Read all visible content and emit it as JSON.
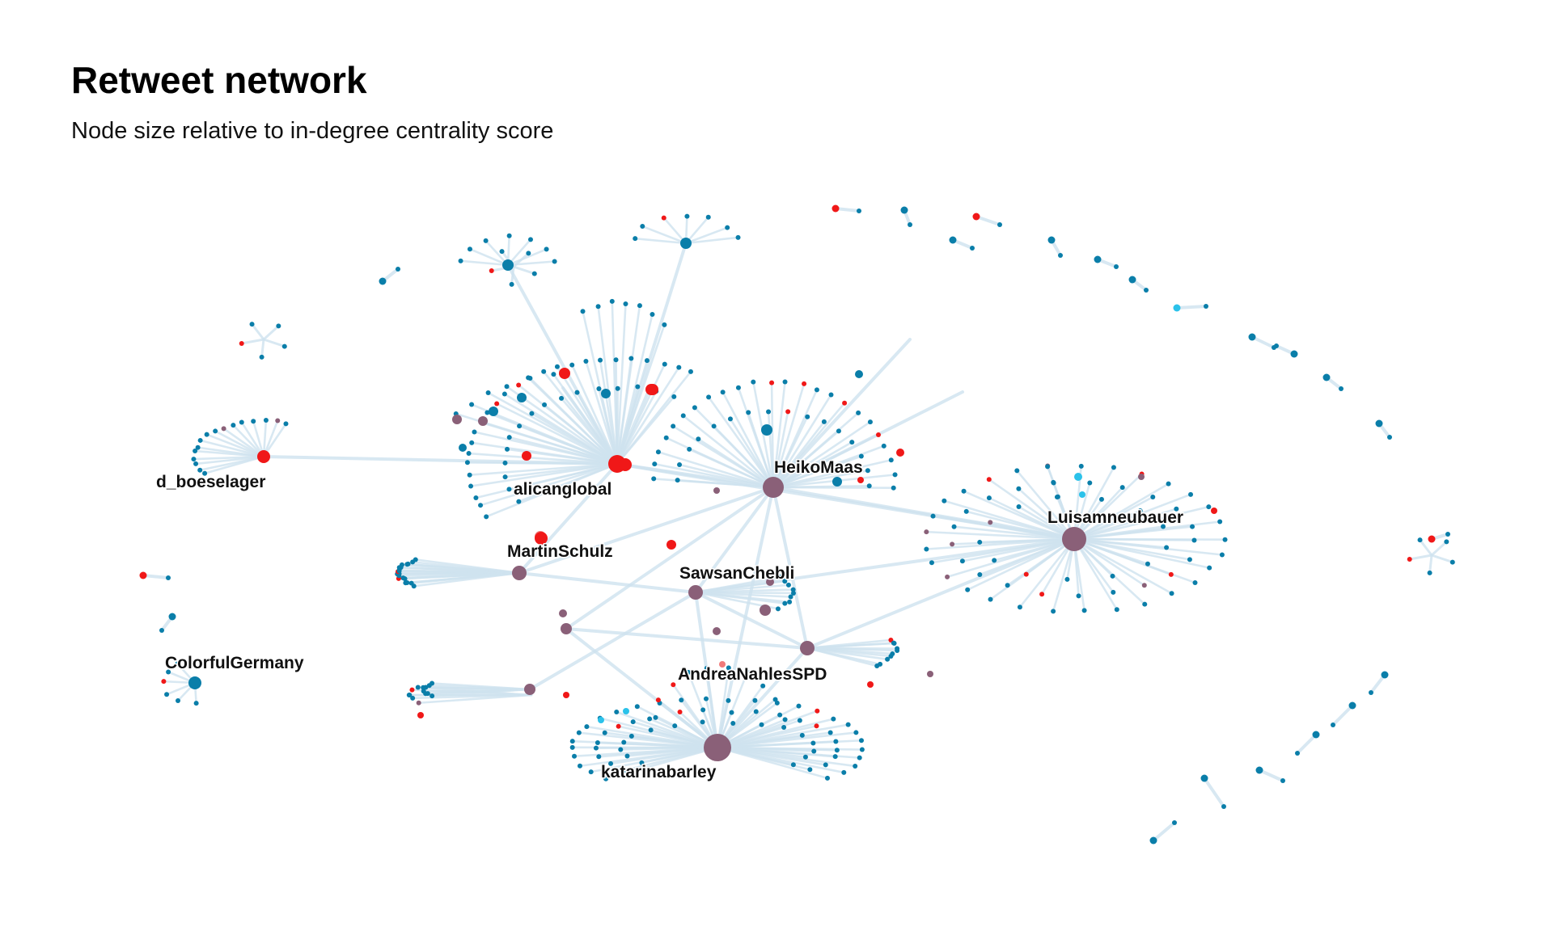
{
  "title": "Retweet network",
  "subtitle": "Node size relative to in-degree centrality score",
  "colors": {
    "edge": "#cfe3ef",
    "node_blue": "#0a7ea9",
    "node_red": "#f01818",
    "node_purple": "#8a6078",
    "node_cyan": "#2bc2ea",
    "node_pink": "#f07a7a"
  },
  "hubs": [
    {
      "id": "katarinabarley",
      "label": "katarinabarley",
      "color": "purple"
    },
    {
      "id": "Luisamneubauer",
      "label": "Luisamneubauer",
      "color": "purple"
    },
    {
      "id": "HeikoMaas",
      "label": "HeikoMaas",
      "color": "purple"
    },
    {
      "id": "alicanglobal",
      "label": "alicanglobal",
      "color": "red"
    },
    {
      "id": "SawsanChebli",
      "label": "SawsanChebli",
      "color": "purple"
    },
    {
      "id": "AndreaNahlesSPD",
      "label": "AndreaNahlesSPD",
      "color": "purple"
    },
    {
      "id": "MartinSchulz",
      "label": "MartinSchulz",
      "color": "purple"
    },
    {
      "id": "d_boeselager",
      "label": "d_boeselager",
      "color": "red"
    },
    {
      "id": "ColorfulGermany",
      "label": "ColorfulGermany",
      "color": "blue"
    }
  ]
}
